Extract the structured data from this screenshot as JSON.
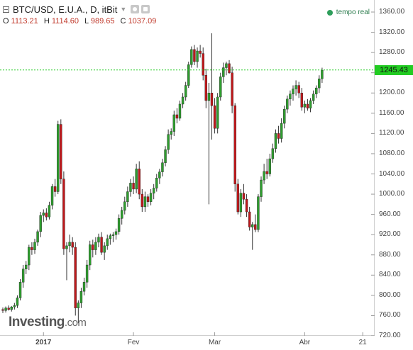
{
  "header": {
    "title": "BTC/USD, E.U.A., D, itBit",
    "ohlc": [
      {
        "key": "O",
        "value": "1113.21"
      },
      {
        "key": "H",
        "value": "1114.60"
      },
      {
        "key": "L",
        "value": "989.65"
      },
      {
        "key": "C",
        "value": "1037.09"
      }
    ]
  },
  "realtime_label": "tempo real",
  "logo": {
    "main": "Investing",
    "suffix": ".com"
  },
  "colors": {
    "up": "#2e9e2e",
    "down": "#c0181b",
    "wick": "#333333",
    "price_line": "#22cc22"
  },
  "chart_data": {
    "type": "candlestick",
    "title": "BTC/USD, E.U.A., D, itBit",
    "ylim": [
      720,
      1370
    ],
    "y_ticks": [
      "1360.00",
      "1320.00",
      "1280.00",
      "1240.00",
      "1200.00",
      "1160.00",
      "1120.00",
      "1080.00",
      "1040.00",
      "1000.00",
      "960.00",
      "920.00",
      "880.00",
      "840.00",
      "800.00",
      "760.00",
      "720.00"
    ],
    "x_ticks": [
      {
        "label": "2017",
        "index": 14,
        "bold": true
      },
      {
        "label": "Fev",
        "index": 45,
        "bold": false
      },
      {
        "label": "Mar",
        "index": 73,
        "bold": false
      },
      {
        "label": "Abr",
        "index": 104,
        "bold": false
      },
      {
        "label": "21",
        "index": 124,
        "bold": false
      }
    ],
    "last_price": "1245.43",
    "last_price_value": 1245.43,
    "candles": [
      [
        772,
        776,
        765,
        770
      ],
      [
        770,
        778,
        766,
        775
      ],
      [
        775,
        780,
        770,
        772
      ],
      [
        772,
        779,
        768,
        777
      ],
      [
        777,
        785,
        772,
        780
      ],
      [
        780,
        800,
        775,
        795
      ],
      [
        795,
        832,
        790,
        826
      ],
      [
        826,
        860,
        815,
        852
      ],
      [
        852,
        868,
        842,
        860
      ],
      [
        860,
        900,
        850,
        895
      ],
      [
        895,
        905,
        880,
        890
      ],
      [
        890,
        912,
        882,
        905
      ],
      [
        905,
        930,
        898,
        926
      ],
      [
        926,
        965,
        915,
        958
      ],
      [
        958,
        970,
        945,
        963
      ],
      [
        963,
        972,
        948,
        955
      ],
      [
        955,
        985,
        950,
        978
      ],
      [
        978,
        1020,
        970,
        1015
      ],
      [
        1015,
        1030,
        995,
        1005
      ],
      [
        1005,
        1145,
        1000,
        1138
      ],
      [
        1138,
        1148,
        1020,
        1030
      ],
      [
        1030,
        1045,
        880,
        892
      ],
      [
        892,
        905,
        830,
        898
      ],
      [
        898,
        920,
        885,
        905
      ],
      [
        905,
        915,
        880,
        895
      ],
      [
        895,
        905,
        760,
        775
      ],
      [
        775,
        790,
        745,
        785
      ],
      [
        785,
        815,
        775,
        808
      ],
      [
        808,
        835,
        800,
        826
      ],
      [
        826,
        870,
        815,
        860
      ],
      [
        860,
        908,
        850,
        900
      ],
      [
        900,
        910,
        875,
        890
      ],
      [
        890,
        915,
        880,
        905
      ],
      [
        905,
        922,
        895,
        915
      ],
      [
        915,
        925,
        880,
        885
      ],
      [
        885,
        905,
        870,
        898
      ],
      [
        898,
        920,
        890,
        912
      ],
      [
        912,
        922,
        900,
        918
      ],
      [
        918,
        925,
        905,
        920
      ],
      [
        920,
        932,
        910,
        926
      ],
      [
        926,
        960,
        920,
        952
      ],
      [
        952,
        975,
        940,
        968
      ],
      [
        968,
        995,
        960,
        985
      ],
      [
        985,
        1015,
        975,
        1005
      ],
      [
        1005,
        1030,
        995,
        1022
      ],
      [
        1022,
        1035,
        1000,
        1010
      ],
      [
        1010,
        1060,
        1002,
        1050
      ],
      [
        1050,
        1065,
        990,
        1000
      ],
      [
        1000,
        1010,
        965,
        975
      ],
      [
        975,
        1005,
        965,
        995
      ],
      [
        995,
        1000,
        975,
        985
      ],
      [
        985,
        1010,
        978,
        1002
      ],
      [
        1002,
        1020,
        990,
        1012
      ],
      [
        1012,
        1040,
        1005,
        1032
      ],
      [
        1032,
        1050,
        1020,
        1044
      ],
      [
        1044,
        1070,
        1035,
        1062
      ],
      [
        1062,
        1095,
        1055,
        1088
      ],
      [
        1088,
        1128,
        1080,
        1118
      ],
      [
        1118,
        1130,
        1108,
        1124
      ],
      [
        1124,
        1165,
        1115,
        1157
      ],
      [
        1157,
        1170,
        1140,
        1150
      ],
      [
        1150,
        1185,
        1145,
        1178
      ],
      [
        1178,
        1200,
        1170,
        1192
      ],
      [
        1192,
        1222,
        1185,
        1215
      ],
      [
        1215,
        1262,
        1210,
        1256
      ],
      [
        1256,
        1292,
        1250,
        1286
      ],
      [
        1286,
        1295,
        1255,
        1262
      ],
      [
        1262,
        1290,
        1250,
        1283
      ],
      [
        1283,
        1295,
        1270,
        1278
      ],
      [
        1278,
        1290,
        1225,
        1235
      ],
      [
        1235,
        1248,
        1170,
        1185
      ],
      [
        1185,
        1220,
        980,
        1200
      ],
      [
        1200,
        1318,
        1108,
        1175
      ],
      [
        1175,
        1190,
        1120,
        1130
      ],
      [
        1130,
        1200,
        1120,
        1192
      ],
      [
        1192,
        1240,
        1185,
        1232
      ],
      [
        1232,
        1260,
        1220,
        1250
      ],
      [
        1250,
        1262,
        1235,
        1258
      ],
      [
        1258,
        1265,
        1238,
        1240
      ],
      [
        1240,
        1252,
        1160,
        1175
      ],
      [
        1175,
        1180,
        1005,
        1020
      ],
      [
        1020,
        1030,
        960,
        965
      ],
      [
        965,
        1010,
        955,
        1002
      ],
      [
        1002,
        1020,
        980,
        990
      ],
      [
        990,
        1000,
        955,
        965
      ],
      [
        965,
        975,
        928,
        935
      ],
      [
        935,
        945,
        890,
        940
      ],
      [
        940,
        960,
        925,
        930
      ],
      [
        930,
        1000,
        925,
        995
      ],
      [
        995,
        1035,
        985,
        1028
      ],
      [
        1028,
        1060,
        1020,
        1045
      ],
      [
        1045,
        1070,
        1030,
        1040
      ],
      [
        1040,
        1080,
        1035,
        1070
      ],
      [
        1070,
        1100,
        1062,
        1090
      ],
      [
        1090,
        1128,
        1082,
        1120
      ],
      [
        1120,
        1135,
        1100,
        1110
      ],
      [
        1110,
        1150,
        1102,
        1140
      ],
      [
        1140,
        1175,
        1130,
        1168
      ],
      [
        1168,
        1195,
        1160,
        1188
      ],
      [
        1188,
        1205,
        1175,
        1198
      ],
      [
        1198,
        1215,
        1185,
        1208
      ],
      [
        1208,
        1225,
        1195,
        1215
      ],
      [
        1215,
        1222,
        1190,
        1200
      ],
      [
        1200,
        1210,
        1165,
        1172
      ],
      [
        1172,
        1185,
        1160,
        1178
      ],
      [
        1178,
        1188,
        1165,
        1170
      ],
      [
        1170,
        1190,
        1162,
        1185
      ],
      [
        1185,
        1205,
        1178,
        1198
      ],
      [
        1198,
        1215,
        1190,
        1210
      ],
      [
        1210,
        1235,
        1200,
        1228
      ],
      [
        1228,
        1250,
        1220,
        1245
      ]
    ]
  }
}
